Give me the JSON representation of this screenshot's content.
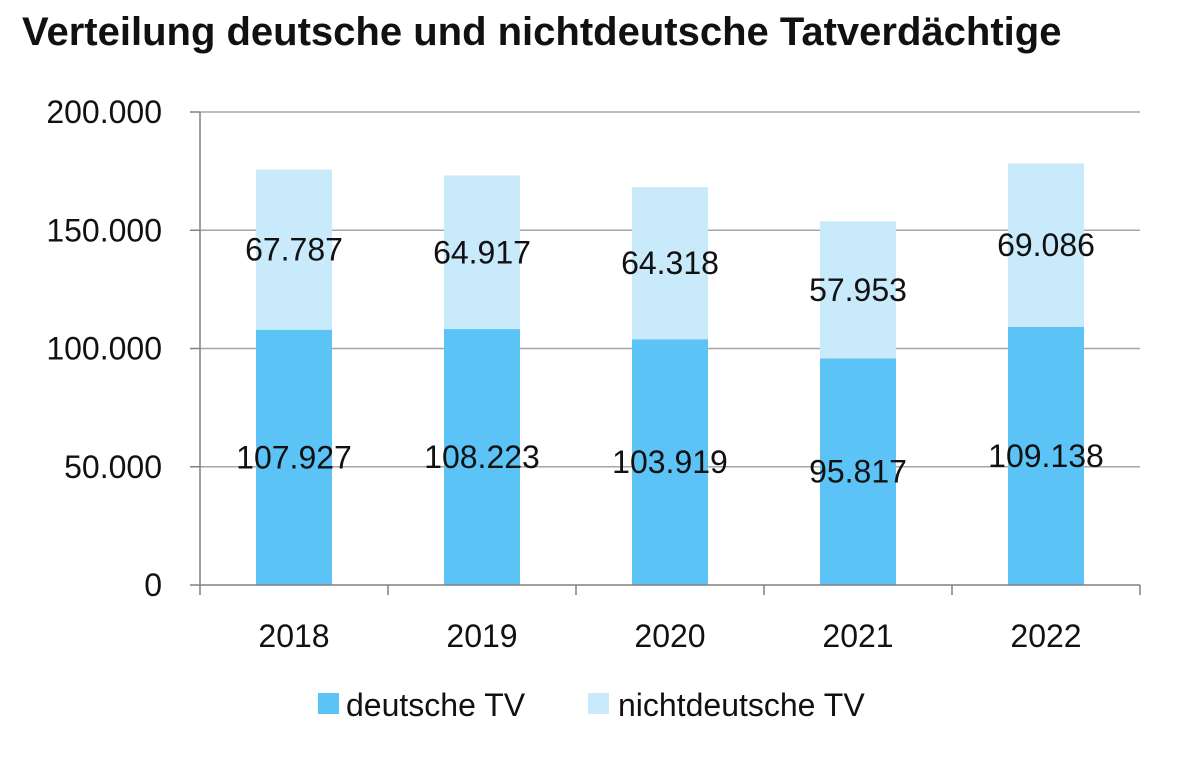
{
  "chart_data": {
    "type": "bar",
    "stacked": true,
    "title": "Verteilung deutsche und nichtdeutsche Tatverdächtige",
    "categories": [
      "2018",
      "2019",
      "2020",
      "2021",
      "2022"
    ],
    "series": [
      {
        "name": "deutsche TV",
        "color": "#5bc3f5",
        "values": [
          107927,
          108223,
          103919,
          95817,
          109138
        ],
        "labels": [
          "107.927",
          "108.223",
          "103.919",
          "95.817",
          "109.138"
        ]
      },
      {
        "name": "nichtdeutsche TV",
        "color": "#c8eafb",
        "values": [
          67787,
          64917,
          64318,
          57953,
          69086
        ],
        "labels": [
          "67.787",
          "64.917",
          "64.318",
          "57.953",
          "69.086"
        ]
      }
    ],
    "yticks": [
      0,
      50000,
      100000,
      150000,
      200000
    ],
    "ytick_labels": [
      "0",
      "50.000",
      "100.000",
      "150.000",
      "200.000"
    ],
    "ylim": [
      0,
      200000
    ],
    "grid": true,
    "legend_position": "bottom"
  }
}
